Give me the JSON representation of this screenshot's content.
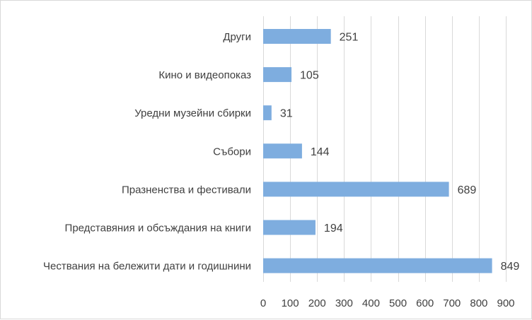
{
  "chart_data": {
    "type": "bar",
    "orientation": "horizontal",
    "title": "",
    "xlabel": "",
    "ylabel": "",
    "categories": [
      "Други",
      "Кино и видеопоказ",
      "Уредни музейни сбирки",
      "Събори",
      "Празненства и фестивали",
      "Представяния и обсъждания на книги",
      "Чествания на бележити дати и годишнини"
    ],
    "values": [
      251,
      105,
      31,
      144,
      689,
      194,
      849
    ],
    "xlim": [
      0,
      900
    ],
    "xticks": [
      0,
      100,
      200,
      300,
      400,
      500,
      600,
      700,
      800,
      900
    ],
    "grid": "vertical",
    "legend": "none",
    "data_labels": true,
    "bar_color": "#7eaddf"
  }
}
